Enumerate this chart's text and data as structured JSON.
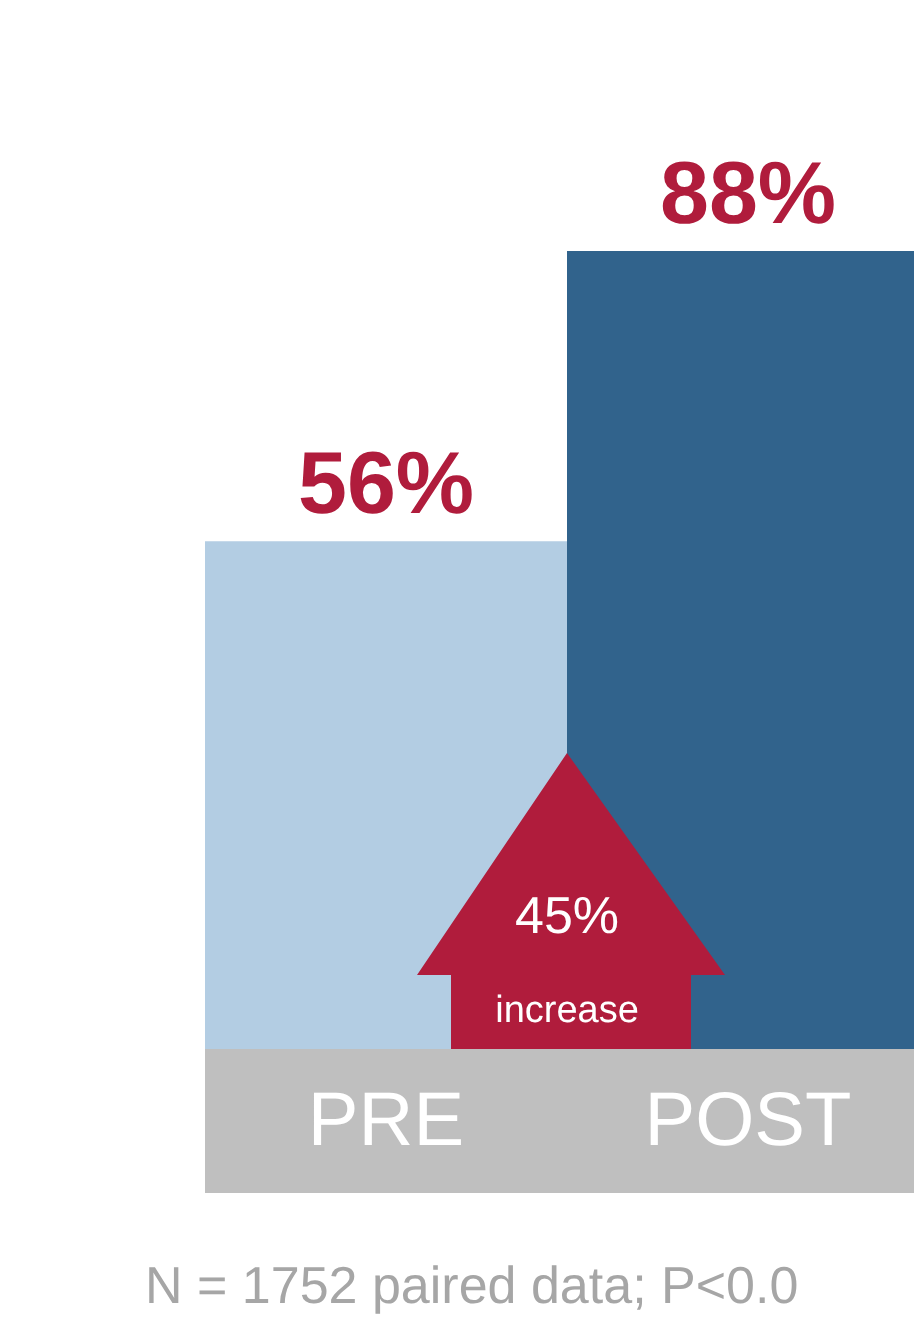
{
  "chart_data": {
    "type": "bar",
    "categories": [
      "PRE",
      "POST"
    ],
    "values": [
      56,
      88
    ],
    "colors": [
      "#b3cde3",
      "#31638c"
    ],
    "value_labels": [
      "56%",
      "88%"
    ],
    "annotations": [
      "45%",
      "increase",
      "N = 1752 paired data; P<0.0"
    ],
    "grid": false
  }
}
